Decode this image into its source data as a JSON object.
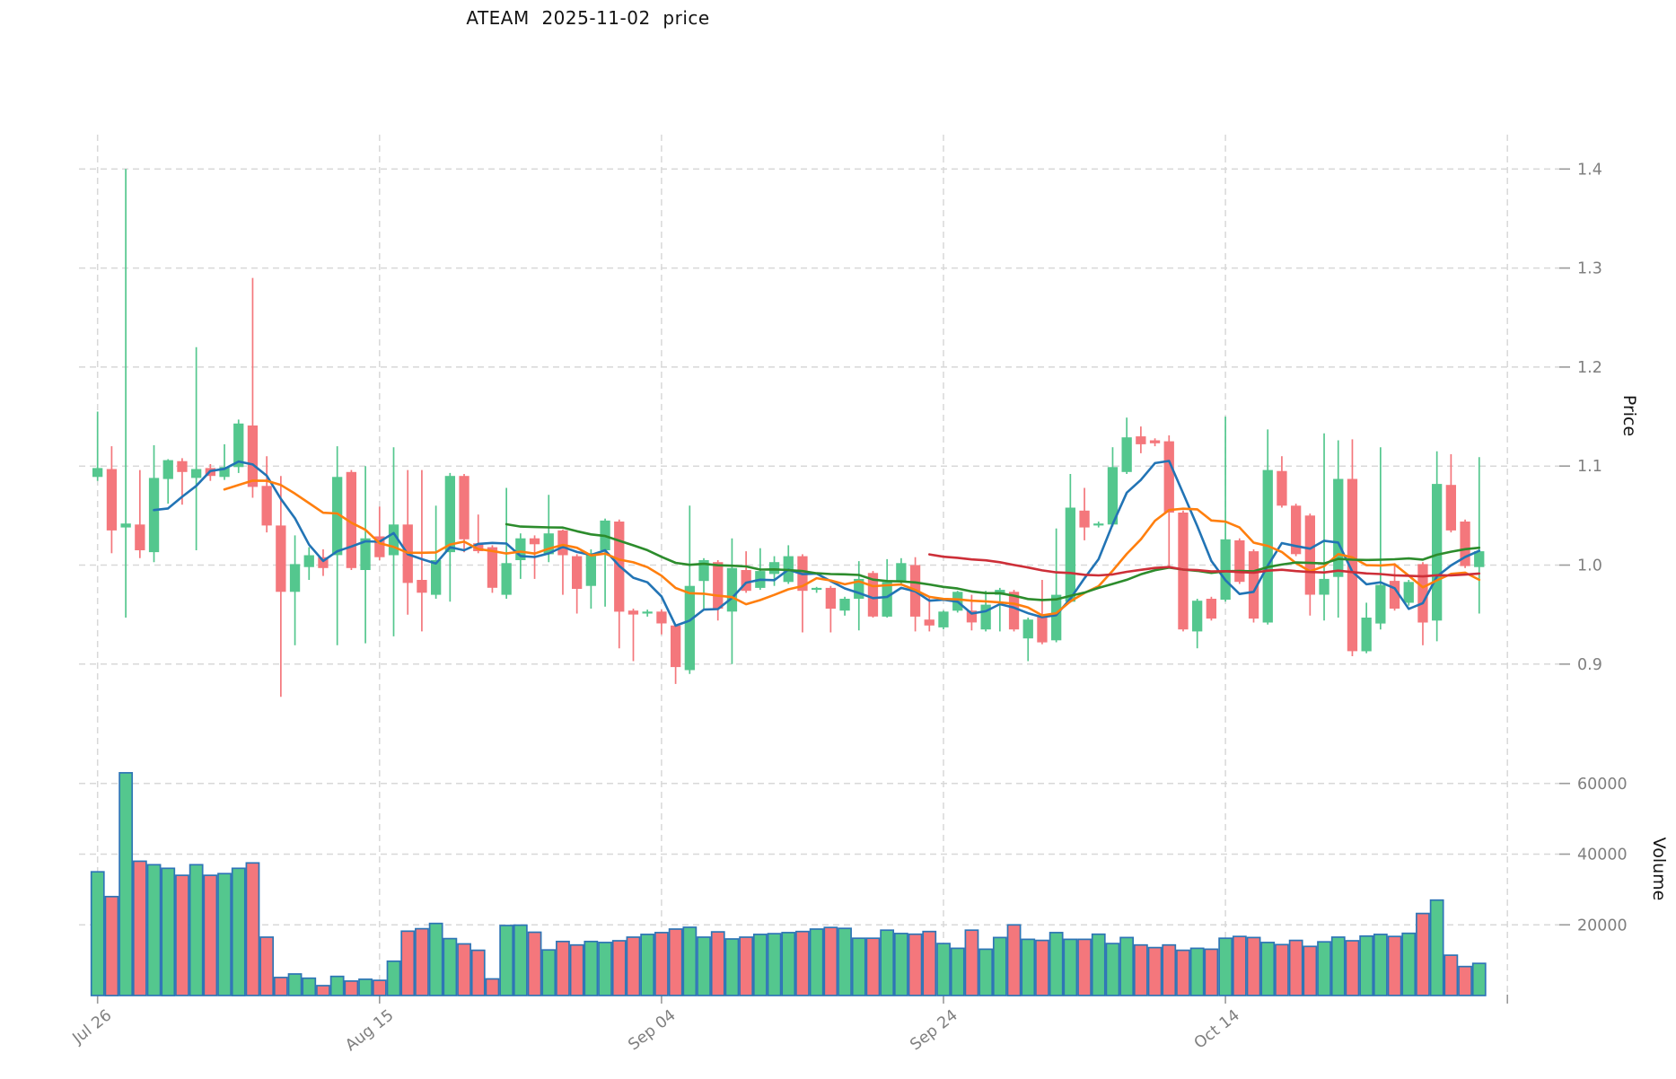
{
  "title": "ATEAM  2025-11-02  price",
  "chart_data": {
    "type": "candlestick",
    "symbol": "ATEAM",
    "as_of_date": "2025-11-02",
    "panels": [
      "price",
      "volume"
    ],
    "x_tick_labels": [
      "Jul 26",
      "Aug 15",
      "Sep 04",
      "Sep 24",
      "Oct 14"
    ],
    "x_tick_indices": [
      0,
      20,
      40,
      60,
      80
    ],
    "x_gridline_indices": [
      0,
      20,
      40,
      60,
      80,
      100
    ],
    "price_axis": {
      "label": "Price",
      "ticks": [
        "0.9",
        "1.0",
        "1.1",
        "1.2",
        "1.3",
        "1.4"
      ],
      "tick_values": [
        0.9,
        1.0,
        1.1,
        1.2,
        1.3,
        1.4
      ],
      "range": [
        0.845,
        1.445
      ]
    },
    "volume_axis": {
      "label": "Volume",
      "ticks": [
        "20000",
        "40000",
        "60000"
      ],
      "tick_values": [
        20000,
        40000,
        60000
      ],
      "range": [
        0,
        70000
      ]
    },
    "moving_averages": [
      {
        "name": "ma5",
        "period": 5,
        "color": "#2274b5"
      },
      {
        "name": "ma10",
        "period": 10,
        "color": "#ff7f0e"
      },
      {
        "name": "ma30",
        "period": 30,
        "color": "#2c8c2c"
      },
      {
        "name": "ma60",
        "period": 60,
        "color": "#cd2f38"
      }
    ],
    "colors": {
      "up": "#54c78e",
      "down": "#f4777c",
      "volume_border": "#2e75b6",
      "grid": "#d8d8d8",
      "tick_mark": "#9a9a9a",
      "tick_label": "#7f7f7f",
      "axis_label": "#141414"
    },
    "grid": true,
    "legend_position": "none",
    "candles_note": "each row = [open, high, low, close, volume], daily from Jul 26 to Nov 1",
    "candles": [
      [
        1.089,
        1.155,
        1.085,
        1.098,
        35000
      ],
      [
        1.097,
        1.12,
        1.012,
        1.035,
        28000
      ],
      [
        1.038,
        1.4,
        0.947,
        1.042,
        63000
      ],
      [
        1.041,
        1.096,
        1.007,
        1.015,
        38000
      ],
      [
        1.013,
        1.121,
        1.003,
        1.088,
        37000
      ],
      [
        1.087,
        1.107,
        1.062,
        1.106,
        36000
      ],
      [
        1.105,
        1.108,
        1.061,
        1.094,
        34000
      ],
      [
        1.088,
        1.22,
        1.015,
        1.097,
        37000
      ],
      [
        1.098,
        1.102,
        1.085,
        1.09,
        34000
      ],
      [
        1.089,
        1.122,
        1.086,
        1.099,
        34500
      ],
      [
        1.099,
        1.147,
        1.093,
        1.143,
        36000
      ],
      [
        1.141,
        1.29,
        1.068,
        1.079,
        37500
      ],
      [
        1.08,
        1.11,
        1.033,
        1.04,
        16500
      ],
      [
        1.04,
        1.09,
        0.867,
        0.973,
        5100
      ],
      [
        0.973,
        1.03,
        0.919,
        1.001,
        6100
      ],
      [
        0.998,
        1.018,
        0.985,
        1.01,
        4900
      ],
      [
        1.008,
        1.016,
        0.989,
        0.997,
        2800
      ],
      [
        1.01,
        1.12,
        0.919,
        1.089,
        5400
      ],
      [
        1.094,
        1.096,
        0.995,
        0.997,
        4100
      ],
      [
        0.995,
        1.1,
        0.921,
        1.027,
        4600
      ],
      [
        1.029,
        1.059,
        1.005,
        1.008,
        4300
      ],
      [
        1.01,
        1.119,
        0.928,
        1.041,
        9700
      ],
      [
        1.041,
        1.096,
        0.95,
        0.982,
        18200
      ],
      [
        0.985,
        1.096,
        0.933,
        0.972,
        18900
      ],
      [
        0.97,
        1.06,
        0.966,
        1.005,
        20400
      ],
      [
        1.013,
        1.093,
        0.963,
        1.09,
        16100
      ],
      [
        1.09,
        1.092,
        1.013,
        1.026,
        14600
      ],
      [
        1.022,
        1.051,
        1.012,
        1.014,
        12800
      ],
      [
        1.018,
        1.02,
        0.972,
        0.977,
        4700
      ],
      [
        0.97,
        1.078,
        0.966,
        1.002,
        19800
      ],
      [
        1.005,
        1.032,
        0.986,
        1.027,
        19900
      ],
      [
        1.027,
        1.03,
        0.986,
        1.021,
        17900
      ],
      [
        1.011,
        1.071,
        1.003,
        1.032,
        12900
      ],
      [
        1.035,
        1.036,
        0.97,
        1.01,
        15300
      ],
      [
        1.009,
        1.011,
        0.951,
        0.976,
        14300
      ],
      [
        0.979,
        1.016,
        0.956,
        1.012,
        15300
      ],
      [
        1.015,
        1.047,
        0.958,
        1.045,
        15000
      ],
      [
        1.044,
        1.046,
        0.916,
        0.953,
        15500
      ],
      [
        0.954,
        0.956,
        0.903,
        0.95,
        16500
      ],
      [
        0.951,
        0.955,
        0.948,
        0.953,
        17300
      ],
      [
        0.953,
        0.955,
        0.93,
        0.941,
        17800
      ],
      [
        0.939,
        0.94,
        0.88,
        0.897,
        18800
      ],
      [
        0.894,
        1.06,
        0.89,
        0.979,
        19300
      ],
      [
        0.984,
        1.007,
        0.956,
        1.005,
        16500
      ],
      [
        1.003,
        1.005,
        0.944,
        0.956,
        18000
      ],
      [
        0.953,
        1.027,
        0.9,
        0.997,
        16000
      ],
      [
        0.995,
        1.014,
        0.972,
        0.974,
        16500
      ],
      [
        0.977,
        1.017,
        0.975,
        0.994,
        17300
      ],
      [
        0.991,
        1.009,
        0.979,
        1.003,
        17500
      ],
      [
        0.983,
        1.02,
        0.981,
        1.009,
        17800
      ],
      [
        1.009,
        1.011,
        0.932,
        0.974,
        18100
      ],
      [
        0.975,
        0.978,
        0.972,
        0.977,
        18800
      ],
      [
        0.977,
        0.979,
        0.932,
        0.956,
        19250
      ],
      [
        0.954,
        0.968,
        0.949,
        0.966,
        19000
      ],
      [
        0.966,
        1.004,
        0.934,
        0.986,
        16200
      ],
      [
        0.992,
        0.994,
        0.947,
        0.948,
        16200
      ],
      [
        0.948,
        1.006,
        0.947,
        0.983,
        18500
      ],
      [
        0.983,
        1.007,
        0.981,
        1.002,
        17550
      ],
      [
        1.0,
        1.008,
        0.933,
        0.948,
        17350
      ],
      [
        0.945,
        0.968,
        0.933,
        0.939,
        18100
      ],
      [
        0.937,
        0.954,
        0.935,
        0.953,
        14700
      ],
      [
        0.954,
        0.974,
        0.952,
        0.973,
        13350
      ],
      [
        0.954,
        0.97,
        0.934,
        0.942,
        18500
      ],
      [
        0.935,
        0.974,
        0.933,
        0.96,
        13100
      ],
      [
        0.97,
        0.977,
        0.933,
        0.975,
        16400
      ],
      [
        0.973,
        0.975,
        0.933,
        0.935,
        20000
      ],
      [
        0.926,
        0.947,
        0.903,
        0.945,
        15900
      ],
      [
        0.948,
        0.985,
        0.92,
        0.922,
        15600
      ],
      [
        0.924,
        1.037,
        0.922,
        0.97,
        17800
      ],
      [
        0.963,
        1.092,
        0.962,
        1.058,
        15900
      ],
      [
        1.055,
        1.078,
        1.025,
        1.038,
        15900
      ],
      [
        1.04,
        1.044,
        1.038,
        1.042,
        17350
      ],
      [
        1.041,
        1.119,
        1.039,
        1.099,
        14700
      ],
      [
        1.094,
        1.149,
        1.092,
        1.129,
        16400
      ],
      [
        1.13,
        1.14,
        1.113,
        1.122,
        14300
      ],
      [
        1.126,
        1.128,
        1.12,
        1.123,
        13550
      ],
      [
        1.125,
        1.131,
        0.999,
        1.053,
        14300
      ],
      [
        1.053,
        1.055,
        0.933,
        0.935,
        12800
      ],
      [
        0.933,
        0.966,
        0.916,
        0.964,
        13350
      ],
      [
        0.966,
        0.968,
        0.944,
        0.946,
        13100
      ],
      [
        0.965,
        1.15,
        0.963,
        1.026,
        16200
      ],
      [
        1.025,
        1.027,
        0.981,
        0.983,
        16700
      ],
      [
        1.014,
        1.016,
        0.942,
        0.946,
        16400
      ],
      [
        0.942,
        1.137,
        0.94,
        1.096,
        15000
      ],
      [
        1.095,
        1.11,
        1.058,
        1.06,
        14400
      ],
      [
        1.06,
        1.062,
        1.009,
        1.011,
        15600
      ],
      [
        1.05,
        1.052,
        0.949,
        0.97,
        13900
      ],
      [
        0.97,
        1.133,
        0.944,
        0.986,
        15200
      ],
      [
        0.988,
        1.126,
        0.947,
        1.087,
        16500
      ],
      [
        1.087,
        1.127,
        0.908,
        0.913,
        15500
      ],
      [
        0.913,
        0.962,
        0.911,
        0.947,
        16800
      ],
      [
        0.941,
        1.119,
        0.935,
        0.98,
        17300
      ],
      [
        0.984,
        1.002,
        0.954,
        0.956,
        16700
      ],
      [
        0.962,
        0.985,
        0.959,
        0.983,
        17600
      ],
      [
        1.001,
        1.003,
        0.919,
        0.942,
        23200
      ],
      [
        0.944,
        1.115,
        0.923,
        1.082,
        27000
      ],
      [
        1.081,
        1.112,
        1.033,
        1.035,
        11400
      ],
      [
        1.044,
        1.046,
        0.997,
        0.999,
        8200
      ],
      [
        0.998,
        1.109,
        0.951,
        1.014,
        9100
      ]
    ]
  }
}
